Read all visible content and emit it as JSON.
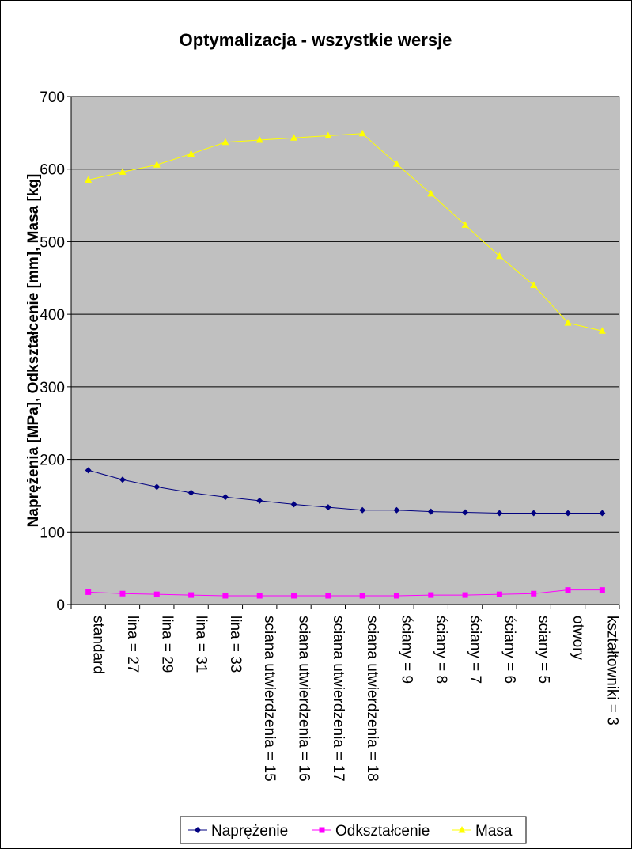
{
  "chart_data": {
    "type": "line",
    "title": "Optymalizacja - wszystkie wersje",
    "ylabel": "Naprężenia [MPa], Odkształcenie [mm], Masa [kg]",
    "xlabel": "",
    "ylim": [
      0,
      700
    ],
    "yticks": [
      0,
      100,
      200,
      300,
      400,
      500,
      600,
      700
    ],
    "grid": true,
    "legend_position": "bottom",
    "categories": [
      "standard",
      "lina = 27",
      "lina = 29",
      "lina = 31",
      "lina = 33",
      "sciana utwierdzenia = 15",
      "sciana utwierdzenia = 16",
      "sciana utwierdzenia = 17",
      "sciana utwierdzenia = 18",
      "ściany = 9",
      "ściany = 8",
      "ściany = 7",
      "ściany = 6",
      "sciany = 5",
      "otwory",
      "kształtowniki = 3"
    ],
    "series": [
      {
        "name": "Naprężenie",
        "color": "#000080",
        "marker": "diamond",
        "values": [
          185,
          172,
          162,
          154,
          148,
          143,
          138,
          134,
          130,
          130,
          128,
          127,
          126,
          126,
          126,
          126
        ]
      },
      {
        "name": "Odkształcenie",
        "color": "#FF00FF",
        "marker": "square",
        "values": [
          17,
          15,
          14,
          13,
          12,
          12,
          12,
          12,
          12,
          12,
          13,
          13,
          14,
          15,
          20,
          20
        ]
      },
      {
        "name": "Masa",
        "color": "#FFFF00",
        "marker": "triangle",
        "values": [
          585,
          596,
          606,
          621,
          637,
          640,
          643,
          646,
          649,
          607,
          566,
          523,
          480,
          440,
          388,
          377
        ]
      }
    ],
    "plot_background": "#C0C0C0"
  }
}
